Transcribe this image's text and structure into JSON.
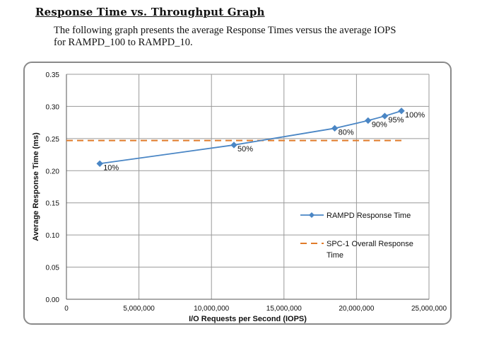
{
  "heading": "Response Time vs. Throughput Graph",
  "description_line1": "The following graph presents the average Response Times versus the average IOPS",
  "description_line2": "for RAMPD_100 to RAMPD_10.",
  "colors": {
    "series": "#4a86c5",
    "reference": "#e07b2a",
    "grid": "#9a9a9a"
  },
  "chart_data": {
    "type": "line",
    "xlabel": "I/O Requests per Second (IOPS)",
    "ylabel": "Average Response Time (ms)",
    "xlim": [
      0,
      25000000
    ],
    "ylim": [
      0,
      0.35
    ],
    "x_ticks": [
      0,
      5000000,
      10000000,
      15000000,
      20000000,
      25000000
    ],
    "x_tick_labels": [
      "0",
      "5,000,000",
      "10,000,000",
      "15,000,000",
      "20,000,000",
      "25,000,000"
    ],
    "y_ticks": [
      0,
      0.05,
      0.1,
      0.15,
      0.2,
      0.25,
      0.3,
      0.35
    ],
    "y_tick_labels": [
      "0.00",
      "0.05",
      "0.10",
      "0.15",
      "0.20",
      "0.25",
      "0.30",
      "0.35"
    ],
    "grid": true,
    "legend_position": "right",
    "series": [
      {
        "name": "RAMPD Response Time",
        "points": [
          {
            "x": 2300000,
            "y": 0.211,
            "label": "10%"
          },
          {
            "x": 11550000,
            "y": 0.24,
            "label": "50%"
          },
          {
            "x": 18500000,
            "y": 0.266,
            "label": "80%"
          },
          {
            "x": 20800000,
            "y": 0.278,
            "label": "90%"
          },
          {
            "x": 21950000,
            "y": 0.285,
            "label": "95%"
          },
          {
            "x": 23100000,
            "y": 0.293,
            "label": "100%"
          }
        ]
      }
    ],
    "reference_lines": [
      {
        "name": "SPC-1 Overall Response Time",
        "legend_lines": [
          "SPC-1 Overall Response",
          "Time"
        ],
        "y": 0.247,
        "x_start": 0,
        "x_end": 23100000
      }
    ]
  }
}
